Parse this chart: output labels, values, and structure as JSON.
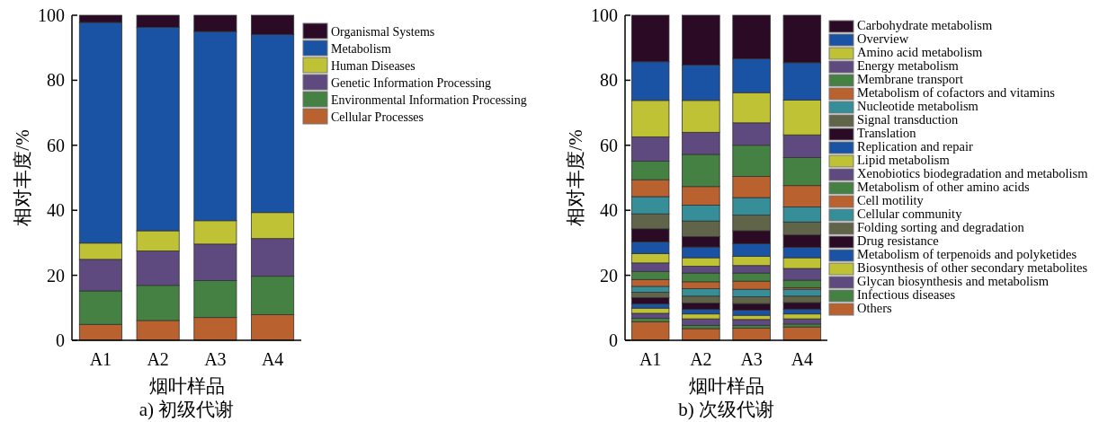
{
  "chart_data": [
    {
      "type": "bar",
      "stacked": true,
      "xlabel": "烟叶样品",
      "ylabel": "相对丰度/%",
      "annotations": [
        "a) 初级代谢"
      ],
      "categories": [
        "A1",
        "A2",
        "A3",
        "A4"
      ],
      "ylim": [
        0,
        100
      ],
      "yticks": [
        0,
        20,
        40,
        60,
        80,
        100
      ],
      "legend": "right",
      "series": [
        {
          "name": "Cellular Processes",
          "color": "#b9612f",
          "values": [
            4.9,
            6.1,
            7.0,
            7.9
          ]
        },
        {
          "name": "Environmental Information Processing",
          "color": "#458142",
          "values": [
            10.3,
            10.8,
            11.4,
            11.8
          ]
        },
        {
          "name": "Genetic Information Processing",
          "color": "#5e4a7e",
          "values": [
            9.7,
            10.6,
            11.2,
            11.6
          ]
        },
        {
          "name": "Human Diseases",
          "color": "#bfc235",
          "values": [
            5.0,
            6.2,
            7.2,
            8.0
          ]
        },
        {
          "name": "Metabolism",
          "color": "#1a53a3",
          "values": [
            67.9,
            62.6,
            58.2,
            54.8
          ]
        },
        {
          "name": "Organismal Systems",
          "color": "#2a0a25",
          "values": [
            2.2,
            3.7,
            5.0,
            5.9
          ]
        }
      ]
    },
    {
      "type": "bar",
      "stacked": true,
      "xlabel": "烟叶样品",
      "ylabel": "相对丰度/%",
      "annotations": [
        "b) 次级代谢"
      ],
      "categories": [
        "A1",
        "A2",
        "A3",
        "A4"
      ],
      "ylim": [
        0,
        100
      ],
      "yticks": [
        0,
        20,
        40,
        60,
        80,
        100
      ],
      "legend": "right",
      "series": [
        {
          "name": "Others",
          "color": "#b9612f",
          "values": [
            5.7,
            3.6,
            3.7,
            4.1
          ]
        },
        {
          "name": "Infectious diseases",
          "color": "#458142",
          "values": [
            1.1,
            1.0,
            0.9,
            0.9
          ]
        },
        {
          "name": "Glycan biosynthesis and metabolism",
          "color": "#5e4a7e",
          "values": [
            1.5,
            2.0,
            1.8,
            1.6
          ]
        },
        {
          "name": "Biosynthesis of other secondary metabolites",
          "color": "#bfc235",
          "values": [
            1.6,
            1.5,
            1.3,
            1.5
          ]
        },
        {
          "name": "Metabolism of terpenoids and polyketides",
          "color": "#1a53a3",
          "values": [
            1.3,
            1.4,
            1.6,
            1.5
          ]
        },
        {
          "name": "Drug resistance",
          "color": "#2a0a25",
          "values": [
            1.9,
            2.0,
            2.0,
            2.0
          ]
        },
        {
          "name": "Folding sorting and degradation",
          "color": "#606448",
          "values": [
            1.7,
            2.1,
            2.1,
            2.0
          ]
        },
        {
          "name": "Cellular community",
          "color": "#368e98",
          "values": [
            1.8,
            2.3,
            2.3,
            2.1
          ]
        },
        {
          "name": "Cell motility",
          "color": "#b9612f",
          "values": [
            2.1,
            2.1,
            2.5,
            0.5
          ]
        },
        {
          "name": "Metabolism of other amino acids",
          "color": "#458142",
          "values": [
            2.5,
            2.7,
            2.5,
            2.3
          ]
        },
        {
          "name": "Xenobiotics biodegradation and metabolism",
          "color": "#5e4a7e",
          "values": [
            2.6,
            2.1,
            2.3,
            3.6
          ]
        },
        {
          "name": "Lipid metabolism",
          "color": "#bfc235",
          "values": [
            2.9,
            2.6,
            2.8,
            3.3
          ]
        },
        {
          "name": "Replication and repair",
          "color": "#1a53a3",
          "values": [
            3.6,
            3.3,
            3.9,
            3.2
          ]
        },
        {
          "name": "Translation",
          "color": "#2a0a25",
          "values": [
            4.0,
            3.2,
            4.0,
            3.8
          ]
        },
        {
          "name": "Signal transduction",
          "color": "#606448",
          "values": [
            4.6,
            4.8,
            4.8,
            4.0
          ]
        },
        {
          "name": "Nucleotide metabolism",
          "color": "#368e98",
          "values": [
            5.3,
            4.9,
            5.4,
            4.6
          ]
        },
        {
          "name": "Metabolism of cofactors and vitamins",
          "color": "#b9612f",
          "values": [
            5.2,
            5.7,
            6.5,
            6.6
          ]
        },
        {
          "name": "Membrane transport",
          "color": "#458142",
          "values": [
            5.7,
            9.9,
            9.6,
            8.6
          ]
        },
        {
          "name": "Energy metabolism",
          "color": "#5e4a7e",
          "values": [
            7.5,
            6.8,
            6.9,
            7.0
          ]
        },
        {
          "name": "Amino acid metabolism",
          "color": "#bfc235",
          "values": [
            11.2,
            9.8,
            9.3,
            10.7
          ]
        },
        {
          "name": "Overview",
          "color": "#1a53a3",
          "values": [
            11.9,
            10.9,
            10.4,
            11.5
          ]
        },
        {
          "name": "Carbohydrate metabolism",
          "color": "#2a0a25",
          "values": [
            14.3,
            15.3,
            13.4,
            14.6
          ]
        }
      ]
    }
  ]
}
